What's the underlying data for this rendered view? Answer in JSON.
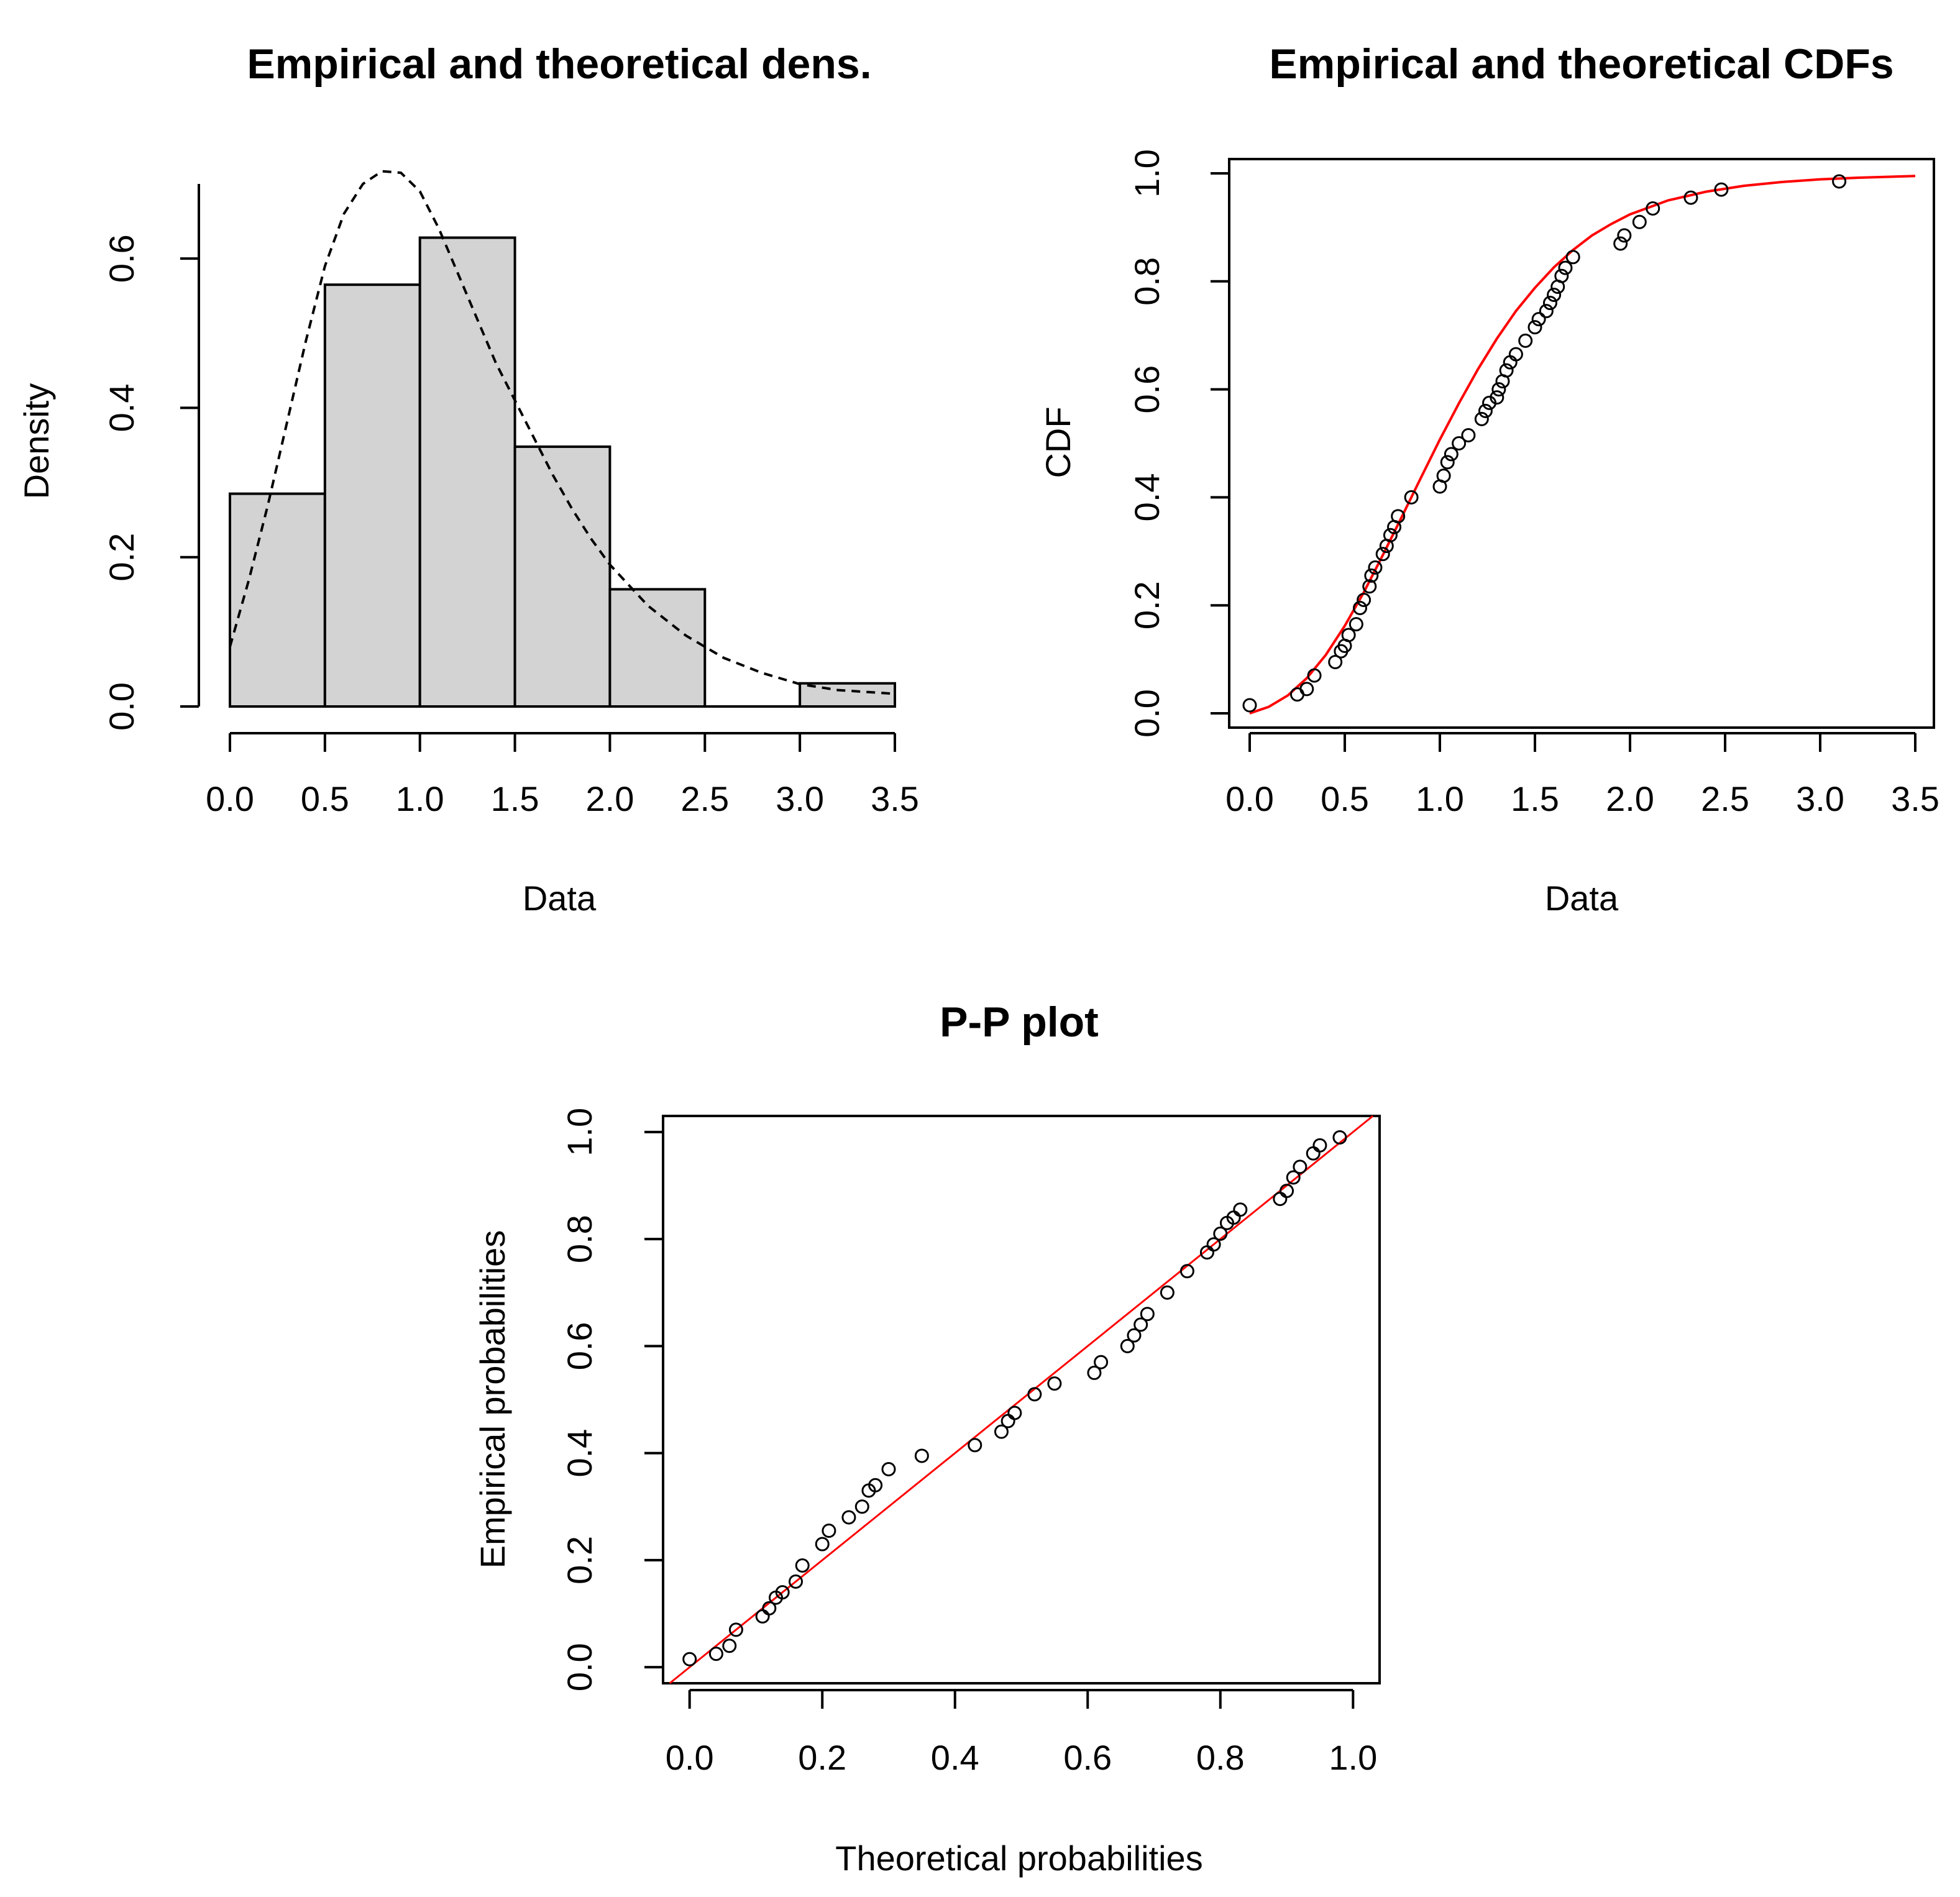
{
  "colors": {
    "bar_fill": "#d3d3d3",
    "ink": "#000000",
    "fit_line": "#ff0000"
  },
  "chart_data": [
    {
      "id": "density",
      "type": "bar",
      "title": "Empirical and theoretical dens.",
      "xlabel": "Data",
      "ylabel": "Density",
      "xlim": [
        0,
        3.5
      ],
      "ylim": [
        0,
        0.7
      ],
      "x_ticks": [
        "0.0",
        "0.5",
        "1.0",
        "1.5",
        "2.0",
        "2.5",
        "3.0",
        "3.5"
      ],
      "y_ticks": [
        "0.0",
        "0.2",
        "0.4",
        "0.6"
      ],
      "bins": [
        {
          "from": 0.0,
          "to": 0.5,
          "density": 0.285
        },
        {
          "from": 0.5,
          "to": 1.0,
          "density": 0.565
        },
        {
          "from": 1.0,
          "to": 1.5,
          "density": 0.628
        },
        {
          "from": 1.5,
          "to": 2.0,
          "density": 0.348
        },
        {
          "from": 2.0,
          "to": 2.5,
          "density": 0.157
        },
        {
          "from": 2.5,
          "to": 3.0,
          "density": 0.0
        },
        {
          "from": 3.0,
          "to": 3.5,
          "density": 0.031
        }
      ],
      "theoretical_curve": {
        "style": "dashed",
        "x": [
          0.0,
          0.1,
          0.2,
          0.3,
          0.4,
          0.5,
          0.6,
          0.7,
          0.8,
          0.9,
          1.0,
          1.1,
          1.2,
          1.3,
          1.4,
          1.5,
          1.6,
          1.7,
          1.8,
          1.9,
          2.0,
          2.2,
          2.4,
          2.6,
          2.8,
          3.0,
          3.2,
          3.5
        ],
        "y": [
          0.08,
          0.17,
          0.27,
          0.38,
          0.49,
          0.59,
          0.66,
          0.7,
          0.717,
          0.715,
          0.69,
          0.64,
          0.58,
          0.52,
          0.46,
          0.41,
          0.36,
          0.31,
          0.265,
          0.225,
          0.19,
          0.135,
          0.095,
          0.065,
          0.045,
          0.03,
          0.022,
          0.017
        ]
      }
    },
    {
      "id": "cdf",
      "type": "scatter",
      "title": "Empirical and theoretical CDFs",
      "xlabel": "Data",
      "ylabel": "CDF",
      "xlim": [
        0,
        3.5
      ],
      "ylim": [
        0,
        1
      ],
      "x_ticks": [
        "0.0",
        "0.5",
        "1.0",
        "1.5",
        "2.0",
        "2.5",
        "3.0",
        "3.5"
      ],
      "y_ticks": [
        "0.0",
        "0.2",
        "0.4",
        "0.6",
        "0.8",
        "1.0"
      ],
      "theoretical_cdf": {
        "color": "red",
        "x": [
          0.0,
          0.1,
          0.2,
          0.3,
          0.4,
          0.5,
          0.6,
          0.7,
          0.8,
          0.9,
          1.0,
          1.1,
          1.2,
          1.3,
          1.4,
          1.5,
          1.6,
          1.7,
          1.8,
          1.9,
          2.0,
          2.2,
          2.4,
          2.6,
          2.8,
          3.0,
          3.2,
          3.5
        ],
        "y": [
          0.0,
          0.012,
          0.033,
          0.065,
          0.108,
          0.162,
          0.224,
          0.293,
          0.364,
          0.436,
          0.507,
          0.574,
          0.637,
          0.694,
          0.745,
          0.788,
          0.826,
          0.858,
          0.885,
          0.906,
          0.924,
          0.95,
          0.966,
          0.977,
          0.984,
          0.989,
          0.992,
          0.995
        ]
      },
      "points": {
        "x": [
          0.0,
          0.25,
          0.3,
          0.34,
          0.45,
          0.48,
          0.5,
          0.52,
          0.56,
          0.58,
          0.6,
          0.63,
          0.64,
          0.66,
          0.7,
          0.72,
          0.74,
          0.76,
          0.78,
          0.85,
          1.0,
          1.02,
          1.04,
          1.06,
          1.1,
          1.15,
          1.22,
          1.24,
          1.26,
          1.3,
          1.31,
          1.33,
          1.35,
          1.37,
          1.4,
          1.45,
          1.5,
          1.52,
          1.56,
          1.58,
          1.6,
          1.62,
          1.64,
          1.66,
          1.7,
          1.95,
          1.97,
          2.05,
          2.12,
          2.32,
          2.48,
          3.1
        ],
        "y": [
          0.015,
          0.035,
          0.045,
          0.07,
          0.095,
          0.115,
          0.125,
          0.145,
          0.165,
          0.195,
          0.21,
          0.235,
          0.255,
          0.27,
          0.295,
          0.31,
          0.33,
          0.345,
          0.365,
          0.4,
          0.42,
          0.44,
          0.465,
          0.48,
          0.5,
          0.515,
          0.545,
          0.56,
          0.575,
          0.585,
          0.6,
          0.615,
          0.635,
          0.65,
          0.665,
          0.69,
          0.715,
          0.73,
          0.745,
          0.76,
          0.775,
          0.79,
          0.81,
          0.825,
          0.845,
          0.87,
          0.885,
          0.91,
          0.935,
          0.955,
          0.97,
          0.985
        ]
      }
    },
    {
      "id": "pp",
      "type": "scatter",
      "title": "P-P plot",
      "xlabel": "Theoretical probabilities",
      "ylabel": "Empirical probabilities",
      "xlim": [
        -0.04,
        1.04
      ],
      "ylim": [
        -0.03,
        1.03
      ],
      "x_ticks": [
        "0.0",
        "0.2",
        "0.4",
        "0.6",
        "0.8",
        "1.0"
      ],
      "y_ticks": [
        "0.0",
        "0.2",
        "0.4",
        "0.6",
        "0.8",
        "1.0"
      ],
      "reference_line": {
        "color": "red",
        "from": [
          -0.03,
          -0.03
        ],
        "to": [
          1.03,
          1.03
        ]
      },
      "points": {
        "x": [
          0.0,
          0.04,
          0.06,
          0.07,
          0.11,
          0.12,
          0.13,
          0.14,
          0.16,
          0.17,
          0.2,
          0.21,
          0.24,
          0.26,
          0.27,
          0.28,
          0.3,
          0.35,
          0.43,
          0.47,
          0.48,
          0.49,
          0.52,
          0.55,
          0.61,
          0.62,
          0.66,
          0.67,
          0.68,
          0.69,
          0.72,
          0.75,
          0.78,
          0.79,
          0.8,
          0.81,
          0.82,
          0.83,
          0.89,
          0.9,
          0.91,
          0.92,
          0.94,
          0.95,
          0.98
        ],
        "y": [
          0.015,
          0.025,
          0.04,
          0.07,
          0.095,
          0.11,
          0.13,
          0.14,
          0.16,
          0.19,
          0.23,
          0.255,
          0.28,
          0.3,
          0.33,
          0.34,
          0.37,
          0.395,
          0.415,
          0.44,
          0.46,
          0.475,
          0.51,
          0.53,
          0.55,
          0.57,
          0.6,
          0.62,
          0.64,
          0.66,
          0.7,
          0.74,
          0.775,
          0.79,
          0.81,
          0.83,
          0.84,
          0.855,
          0.875,
          0.89,
          0.915,
          0.935,
          0.96,
          0.975,
          0.99
        ]
      }
    }
  ]
}
